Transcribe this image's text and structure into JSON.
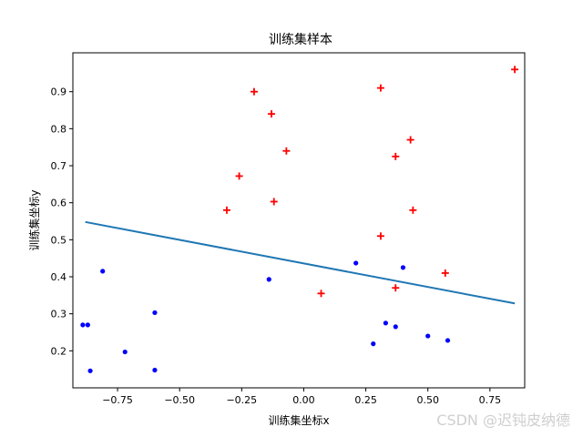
{
  "chart_data": {
    "type": "scatter",
    "title": "训练集样本",
    "xlabel": "训练集坐标x",
    "ylabel": "训练集坐标y",
    "xlim": [
      -0.93,
      0.89
    ],
    "ylim": [
      0.1,
      1.005
    ],
    "xticks": [
      -0.75,
      -0.5,
      -0.25,
      0.0,
      0.25,
      0.5,
      0.75
    ],
    "xtick_labels": [
      "−0.75",
      "−0.50",
      "−0.25",
      "0.00",
      "0.25",
      "0.50",
      "0.75"
    ],
    "yticks": [
      0.2,
      0.3,
      0.4,
      0.5,
      0.6,
      0.7,
      0.8,
      0.9
    ],
    "ytick_labels": [
      "0.2",
      "0.3",
      "0.4",
      "0.5",
      "0.6",
      "0.7",
      "0.8",
      "0.9"
    ],
    "grid": false,
    "colors": {
      "red_plus": "#ff0000",
      "blue_dot": "#0000ff",
      "line": "#1f77b4"
    },
    "series": [
      {
        "marker": "plus",
        "color": "#ff0000",
        "points": [
          [
            0.85,
            0.96
          ],
          [
            -0.2,
            0.9
          ],
          [
            0.31,
            0.91
          ],
          [
            -0.13,
            0.84
          ],
          [
            0.43,
            0.77
          ],
          [
            -0.07,
            0.74
          ],
          [
            0.37,
            0.725
          ],
          [
            -0.26,
            0.672
          ],
          [
            -0.12,
            0.603
          ],
          [
            -0.31,
            0.58
          ],
          [
            0.44,
            0.58
          ],
          [
            0.31,
            0.51
          ],
          [
            0.57,
            0.41
          ],
          [
            0.37,
            0.37
          ],
          [
            0.07,
            0.355
          ]
        ]
      },
      {
        "marker": "dot",
        "color": "#0000ff",
        "points": [
          [
            -0.81,
            0.415
          ],
          [
            -0.6,
            0.303
          ],
          [
            -0.89,
            0.27
          ],
          [
            -0.87,
            0.27
          ],
          [
            -0.72,
            0.197
          ],
          [
            -0.86,
            0.146
          ],
          [
            -0.6,
            0.148
          ],
          [
            -0.14,
            0.393
          ],
          [
            0.21,
            0.437
          ],
          [
            0.4,
            0.425
          ],
          [
            0.33,
            0.275
          ],
          [
            0.37,
            0.265
          ],
          [
            0.28,
            0.219
          ],
          [
            0.5,
            0.24
          ],
          [
            0.58,
            0.228
          ]
        ]
      },
      {
        "marker": "line",
        "color": "#1f77b4",
        "points": [
          [
            -0.88,
            0.548
          ],
          [
            0.85,
            0.328
          ]
        ]
      }
    ]
  },
  "watermark": "CSDN @迟钝皮纳德"
}
